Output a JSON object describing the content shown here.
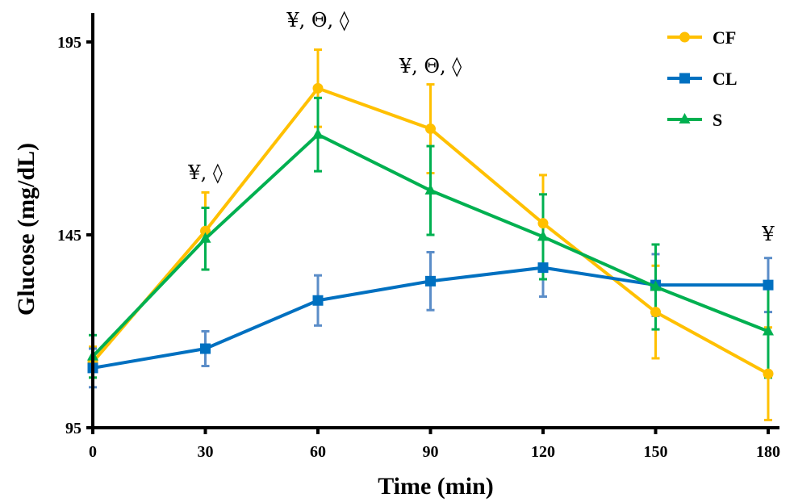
{
  "chart_data": {
    "type": "line",
    "title": "",
    "xlabel": "Time (min)",
    "ylabel": "Glucose (mg/dL)",
    "x": [
      0,
      30,
      60,
      90,
      120,
      150,
      180
    ],
    "x_ticks": [
      "0",
      "30",
      "60",
      "90",
      "120",
      "150",
      "180"
    ],
    "xlim": [
      0,
      180
    ],
    "y_ticks": [
      "95",
      "145",
      "195"
    ],
    "ylim": [
      95,
      200
    ],
    "grid": false,
    "legend_position": "top-right",
    "series": [
      {
        "name": "CF",
        "color": "#FFC000",
        "marker": "circle",
        "values": [
          112,
          146,
          183,
          172.5,
          148,
          125,
          109
        ],
        "error": [
          4,
          10,
          10,
          11.5,
          12.5,
          12,
          12
        ]
      },
      {
        "name": "CL",
        "color": "#0070C0",
        "error_color": "#5B8DC8",
        "marker": "square",
        "values": [
          110.5,
          115.5,
          128,
          133,
          136.5,
          132,
          132
        ],
        "error": [
          5,
          4.5,
          6.5,
          7.5,
          7.5,
          8,
          7
        ]
      },
      {
        "name": "S",
        "color": "#00B050",
        "marker": "triangle",
        "values": [
          113.5,
          144,
          171,
          156.5,
          144.5,
          131.5,
          120
        ],
        "error": [
          5.5,
          8,
          9.5,
          11.5,
          11,
          11,
          12
        ]
      }
    ],
    "annotations": [
      {
        "x": 30,
        "text": "¥, ◊"
      },
      {
        "x": 60,
        "text": "¥, Θ, ◊"
      },
      {
        "x": 90,
        "text": "¥, Θ, ◊"
      },
      {
        "x": 180,
        "text": "¥"
      }
    ]
  }
}
